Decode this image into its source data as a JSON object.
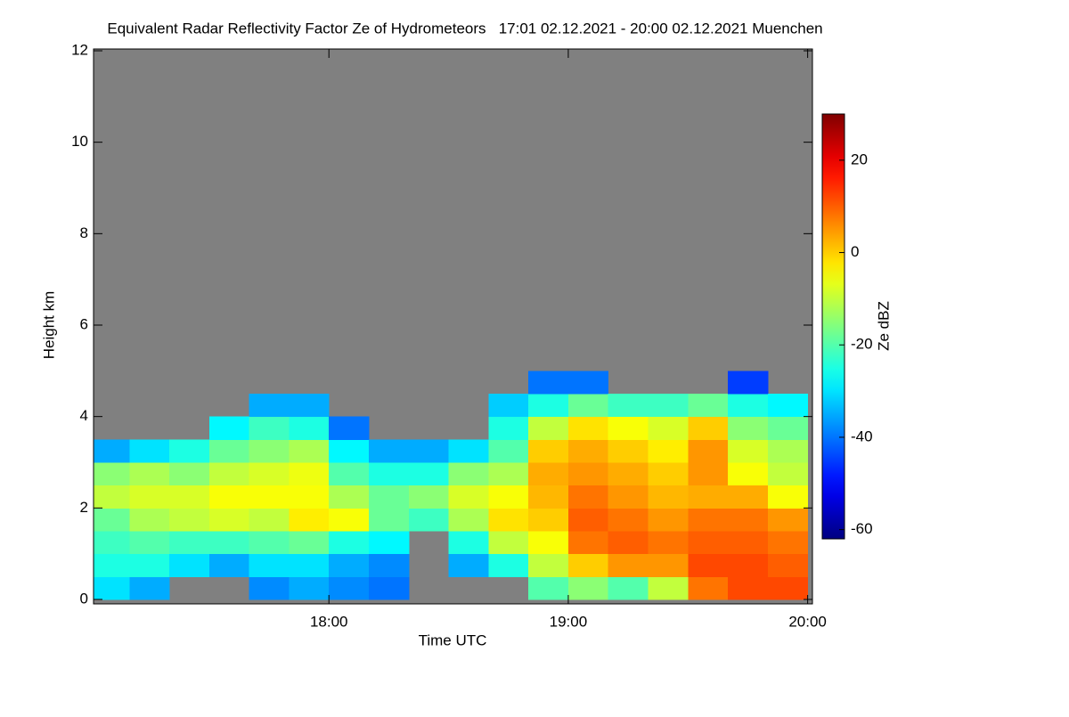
{
  "chart_data": {
    "type": "heatmap",
    "title": "Equivalent Radar Reflectivity Factor Ze of Hydrometeors   17:01 02.12.2021 - 20:00 02.12.2021 Muenchen",
    "xlabel": "Time UTC",
    "ylabel": "Height km",
    "colorbar_label": "Ze dBZ",
    "xlim": [
      17.0167,
      20.02
    ],
    "ylim": [
      0,
      12
    ],
    "xticks": [
      {
        "value": 18,
        "label": "18:00"
      },
      {
        "value": 19,
        "label": "19:00"
      },
      {
        "value": 20,
        "label": "20:00"
      }
    ],
    "yticks": [
      0,
      2,
      4,
      6,
      8,
      10,
      12
    ],
    "zlim": [
      -62,
      30
    ],
    "zticks": [
      -60,
      -40,
      -20,
      0,
      20
    ],
    "background": "#808080",
    "x_bins": [
      17,
      17.1667,
      17.3333,
      17.5,
      17.6667,
      17.8333,
      18,
      18.1667,
      18.3333,
      18.5,
      18.6667,
      18.8333,
      19,
      19.1667,
      19.3333,
      19.5,
      19.6667,
      19.8333,
      20
    ],
    "y_bins": [
      0,
      0.5,
      1,
      1.5,
      2,
      2.5,
      3,
      3.5,
      4,
      4.5,
      5
    ],
    "z": [
      [
        -30,
        -25,
        -22,
        -18,
        -10,
        -15,
        -35,
        null,
        null,
        null
      ],
      [
        -35,
        -25,
        -20,
        -12,
        -8,
        -12,
        -30,
        null,
        null,
        null
      ],
      [
        null,
        -30,
        -22,
        -10,
        -8,
        -15,
        -25,
        null,
        null,
        null
      ],
      [
        null,
        -35,
        -22,
        -8,
        -5,
        -10,
        -18,
        -28,
        null,
        null
      ],
      [
        -38,
        -30,
        -20,
        -10,
        -5,
        -8,
        -15,
        -22,
        -35,
        null
      ],
      [
        -35,
        -30,
        -18,
        -3,
        -5,
        -6,
        -12,
        -25,
        -35,
        null
      ],
      [
        -38,
        -35,
        -25,
        -5,
        -12,
        -20,
        -28,
        -40,
        null,
        null
      ],
      [
        -40,
        -38,
        -28,
        -18,
        -18,
        -25,
        -35,
        null,
        null,
        null
      ],
      [
        null,
        null,
        null,
        -22,
        -15,
        -25,
        -35,
        null,
        null,
        null
      ],
      [
        null,
        -35,
        -25,
        -12,
        -8,
        -15,
        -30,
        null,
        null,
        null
      ],
      [
        null,
        -25,
        -10,
        -2,
        -5,
        -12,
        -20,
        -25,
        -32,
        null
      ],
      [
        -20,
        -10,
        -5,
        0,
        2,
        3,
        0,
        -10,
        -25,
        -40
      ],
      [
        -15,
        0,
        8,
        10,
        8,
        5,
        3,
        -2,
        -18,
        -40
      ],
      [
        -20,
        5,
        10,
        8,
        5,
        3,
        0,
        -5,
        -22,
        null
      ],
      [
        -10,
        5,
        8,
        5,
        2,
        0,
        -3,
        -8,
        -22,
        null
      ],
      [
        8,
        12,
        10,
        8,
        3,
        5,
        5,
        0,
        -18,
        null
      ],
      [
        12,
        12,
        10,
        8,
        3,
        -5,
        -8,
        -15,
        -25,
        -45
      ],
      [
        12,
        10,
        8,
        5,
        -5,
        -10,
        -12,
        -18,
        -28,
        null
      ]
    ]
  }
}
